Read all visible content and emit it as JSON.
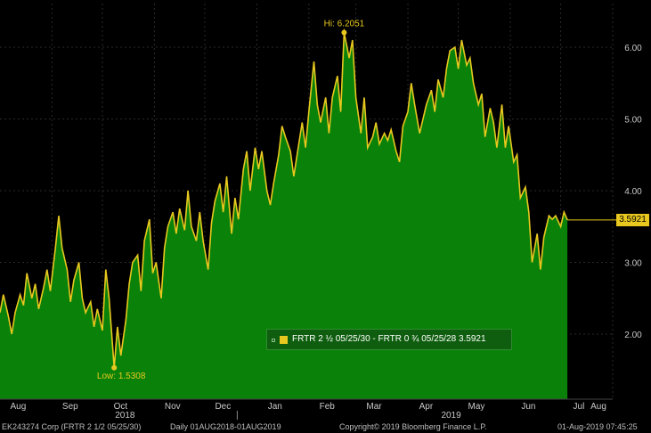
{
  "chart_data": {
    "type": "area",
    "title": "",
    "xlabel": "",
    "ylabel": "",
    "ylim": [
      1.05,
      6.5
    ],
    "yticks": [
      2.0,
      3.0,
      4.0,
      5.0,
      6.0
    ],
    "ytick_labels": [
      "2.00",
      "3.00",
      "4.00",
      "5.00",
      "6.00"
    ],
    "x_month_labels": [
      "Aug",
      "Sep",
      "Oct",
      "Nov",
      "Dec",
      "Jan",
      "Feb",
      "Mar",
      "Apr",
      "May",
      "Jun",
      "Jul",
      "Aug"
    ],
    "x_year_labels": [
      "2018",
      "2019"
    ],
    "grid": true,
    "fill_color": "#0a820a",
    "line_color": "#e8c81e",
    "series": [
      {
        "name": "FRTR 2 ½ 05/25/30 - FRTR 0 ¾ 05/25/28",
        "points": [
          [
            "2018-08-01",
            2.3
          ],
          [
            "2018-08-03",
            2.55
          ],
          [
            "2018-08-06",
            2.25
          ],
          [
            "2018-08-08",
            2.0
          ],
          [
            "2018-08-10",
            2.3
          ],
          [
            "2018-08-13",
            2.55
          ],
          [
            "2018-08-15",
            2.4
          ],
          [
            "2018-08-17",
            2.85
          ],
          [
            "2018-08-20",
            2.5
          ],
          [
            "2018-08-22",
            2.7
          ],
          [
            "2018-08-24",
            2.35
          ],
          [
            "2018-08-27",
            2.65
          ],
          [
            "2018-08-29",
            2.9
          ],
          [
            "2018-08-31",
            2.6
          ],
          [
            "2018-09-03",
            3.2
          ],
          [
            "2018-09-05",
            3.65
          ],
          [
            "2018-09-07",
            3.2
          ],
          [
            "2018-09-10",
            2.9
          ],
          [
            "2018-09-12",
            2.45
          ],
          [
            "2018-09-14",
            2.75
          ],
          [
            "2018-09-17",
            3.0
          ],
          [
            "2018-09-19",
            2.5
          ],
          [
            "2018-09-21",
            2.3
          ],
          [
            "2018-09-24",
            2.45
          ],
          [
            "2018-09-26",
            2.1
          ],
          [
            "2018-09-28",
            2.35
          ],
          [
            "2018-10-01",
            2.05
          ],
          [
            "2018-10-03",
            2.9
          ],
          [
            "2018-10-05",
            2.5
          ],
          [
            "2018-10-08",
            1.5308
          ],
          [
            "2018-10-10",
            2.1
          ],
          [
            "2018-10-12",
            1.7
          ],
          [
            "2018-10-15",
            2.2
          ],
          [
            "2018-10-17",
            2.7
          ],
          [
            "2018-10-19",
            3.0
          ],
          [
            "2018-10-22",
            3.1
          ],
          [
            "2018-10-24",
            2.6
          ],
          [
            "2018-10-26",
            3.3
          ],
          [
            "2018-10-29",
            3.6
          ],
          [
            "2018-10-31",
            2.85
          ],
          [
            "2018-11-02",
            3.0
          ],
          [
            "2018-11-05",
            2.5
          ],
          [
            "2018-11-07",
            3.2
          ],
          [
            "2018-11-09",
            3.5
          ],
          [
            "2018-11-12",
            3.7
          ],
          [
            "2018-11-14",
            3.4
          ],
          [
            "2018-11-16",
            3.75
          ],
          [
            "2018-11-19",
            3.45
          ],
          [
            "2018-11-21",
            4.0
          ],
          [
            "2018-11-23",
            3.5
          ],
          [
            "2018-11-26",
            3.3
          ],
          [
            "2018-11-28",
            3.7
          ],
          [
            "2018-11-30",
            3.3
          ],
          [
            "2018-12-03",
            2.9
          ],
          [
            "2018-12-05",
            3.55
          ],
          [
            "2018-12-07",
            3.85
          ],
          [
            "2018-12-10",
            4.1
          ],
          [
            "2018-12-12",
            3.7
          ],
          [
            "2018-12-14",
            4.2
          ],
          [
            "2018-12-17",
            3.4
          ],
          [
            "2018-12-19",
            3.9
          ],
          [
            "2018-12-21",
            3.6
          ],
          [
            "2018-12-24",
            4.3
          ],
          [
            "2018-12-26",
            4.55
          ],
          [
            "2018-12-28",
            4.0
          ],
          [
            "2018-12-31",
            4.6
          ],
          [
            "2019-01-02",
            4.3
          ],
          [
            "2019-01-04",
            4.55
          ],
          [
            "2019-01-07",
            4.0
          ],
          [
            "2019-01-09",
            3.8
          ],
          [
            "2019-01-11",
            4.1
          ],
          [
            "2019-01-14",
            4.5
          ],
          [
            "2019-01-16",
            4.9
          ],
          [
            "2019-01-18",
            4.75
          ],
          [
            "2019-01-21",
            4.55
          ],
          [
            "2019-01-23",
            4.2
          ],
          [
            "2019-01-25",
            4.5
          ],
          [
            "2019-01-28",
            4.95
          ],
          [
            "2019-01-30",
            4.6
          ],
          [
            "2019-02-01",
            5.1
          ],
          [
            "2019-02-04",
            5.8
          ],
          [
            "2019-02-06",
            5.2
          ],
          [
            "2019-02-08",
            4.95
          ],
          [
            "2019-02-11",
            5.3
          ],
          [
            "2019-02-13",
            4.8
          ],
          [
            "2019-02-15",
            5.3
          ],
          [
            "2019-02-18",
            5.6
          ],
          [
            "2019-02-20",
            5.1
          ],
          [
            "2019-02-22",
            6.2051
          ],
          [
            "2019-02-25",
            5.85
          ],
          [
            "2019-02-27",
            6.1
          ],
          [
            "2019-03-01",
            5.3
          ],
          [
            "2019-03-04",
            4.8
          ],
          [
            "2019-03-06",
            5.3
          ],
          [
            "2019-03-08",
            4.6
          ],
          [
            "2019-03-11",
            4.75
          ],
          [
            "2019-03-13",
            4.95
          ],
          [
            "2019-03-15",
            4.65
          ],
          [
            "2019-03-18",
            4.8
          ],
          [
            "2019-03-20",
            4.7
          ],
          [
            "2019-03-22",
            4.85
          ],
          [
            "2019-03-25",
            4.55
          ],
          [
            "2019-03-27",
            4.4
          ],
          [
            "2019-03-29",
            4.9
          ],
          [
            "2019-04-01",
            5.1
          ],
          [
            "2019-04-03",
            5.5
          ],
          [
            "2019-04-05",
            5.2
          ],
          [
            "2019-04-08",
            4.8
          ],
          [
            "2019-04-10",
            5.0
          ],
          [
            "2019-04-12",
            5.2
          ],
          [
            "2019-04-15",
            5.4
          ],
          [
            "2019-04-17",
            5.1
          ],
          [
            "2019-04-19",
            5.55
          ],
          [
            "2019-04-22",
            5.3
          ],
          [
            "2019-04-24",
            5.7
          ],
          [
            "2019-04-26",
            5.95
          ],
          [
            "2019-04-29",
            6.0
          ],
          [
            "2019-05-01",
            5.7
          ],
          [
            "2019-05-03",
            6.1
          ],
          [
            "2019-05-06",
            5.75
          ],
          [
            "2019-05-08",
            5.85
          ],
          [
            "2019-05-10",
            5.5
          ],
          [
            "2019-05-13",
            5.2
          ],
          [
            "2019-05-15",
            5.35
          ],
          [
            "2019-05-17",
            4.75
          ],
          [
            "2019-05-20",
            5.15
          ],
          [
            "2019-05-22",
            4.95
          ],
          [
            "2019-05-24",
            4.6
          ],
          [
            "2019-05-27",
            5.2
          ],
          [
            "2019-05-29",
            4.6
          ],
          [
            "2019-05-31",
            4.9
          ],
          [
            "2019-06-03",
            4.4
          ],
          [
            "2019-06-05",
            4.5
          ],
          [
            "2019-06-07",
            3.9
          ],
          [
            "2019-06-10",
            4.05
          ],
          [
            "2019-06-12",
            3.7
          ],
          [
            "2019-06-14",
            3.0
          ],
          [
            "2019-06-17",
            3.4
          ],
          [
            "2019-06-19",
            2.9
          ],
          [
            "2019-06-21",
            3.35
          ],
          [
            "2019-06-24",
            3.65
          ],
          [
            "2019-06-26",
            3.6
          ],
          [
            "2019-06-28",
            3.65
          ],
          [
            "2019-07-01",
            3.5
          ],
          [
            "2019-07-03",
            3.7
          ],
          [
            "2019-07-05",
            3.5921
          ]
        ]
      }
    ],
    "annotations": {
      "high": {
        "label": "Hi: 6.2051",
        "date": "2019-02-22",
        "value": 6.2051
      },
      "low": {
        "label": "Low: 1.5308",
        "date": "2018-10-08",
        "value": 1.5308
      },
      "last": {
        "label": "3.5921",
        "value": 3.5921
      }
    },
    "legend": {
      "placement": "bottom-center",
      "text": "FRTR 2 ½ 05/25/30 - FRTR 0 ¾ 05/25/28 3.5921"
    }
  },
  "footer": {
    "security": "EK243274 Corp (FRTR 2 1/2 05/25/30)",
    "range": "Daily 01AUG2018-01AUG2019",
    "copyright": "Copyright© 2019 Bloomberg Finance L.P.",
    "timestamp": "01-Aug-2019 07:45:25"
  },
  "colors": {
    "background": "#000000",
    "area": "#0a820a",
    "line": "#e8c81e",
    "grid": "#2a2a2a",
    "text": "#c8c8c8"
  }
}
